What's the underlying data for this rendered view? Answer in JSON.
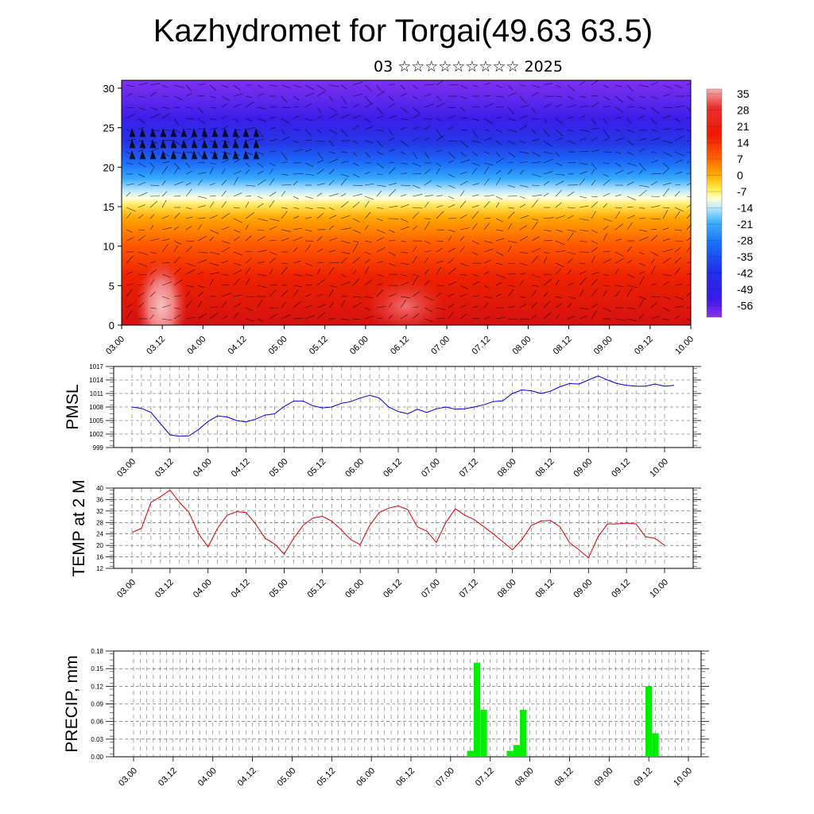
{
  "title": "Kazhydromet for Torgai(49.63 63.5)",
  "subtitle": "03 ☆☆☆☆☆☆☆☆☆ 2025",
  "time_labels": [
    "03.00",
    "03.12",
    "04.00",
    "04.12",
    "05.00",
    "05.12",
    "06.00",
    "06.12",
    "07.00",
    "07.12",
    "08.00",
    "08.12",
    "09.00",
    "09.12",
    "10.00"
  ],
  "chart_data": [
    {
      "type": "heatmap",
      "description_axis": "height",
      "y_ticks": [
        0,
        5,
        10,
        15,
        20,
        25,
        30
      ],
      "ylim": [
        0,
        31
      ],
      "colorbar": {
        "labels": [
          "35",
          "28",
          "21",
          "14",
          "7",
          "0",
          "-7",
          "-14",
          "-21",
          "-28",
          "-35",
          "-42",
          "-49",
          "-56"
        ],
        "range": [
          -60,
          38
        ]
      },
      "grid": false
    },
    {
      "type": "line",
      "ylabel": "PMSL",
      "y_ticks": [
        999,
        1002,
        1005,
        1008,
        1011,
        1014,
        1017
      ],
      "ylim": [
        999,
        1017
      ],
      "color": "#0000dd",
      "values": [
        1008.0,
        1007.7,
        1006.8,
        1004.3,
        1001.8,
        1001.5,
        1001.6,
        1003.0,
        1004.8,
        1006.0,
        1005.8,
        1005.0,
        1004.7,
        1005.3,
        1006.2,
        1006.5,
        1008.1,
        1009.3,
        1009.3,
        1008.3,
        1007.8,
        1008.0,
        1008.8,
        1009.2,
        1010.0,
        1010.6,
        1010.0,
        1008.0,
        1007.0,
        1006.5,
        1007.5,
        1006.8,
        1007.6,
        1008.0,
        1007.5,
        1007.6,
        1008.0,
        1008.5,
        1009.2,
        1009.4,
        1011.0,
        1011.8,
        1011.6,
        1011.0,
        1011.5,
        1012.5,
        1013.2,
        1013.1,
        1014.0,
        1014.9,
        1014.0,
        1013.2,
        1012.8,
        1012.6,
        1012.6,
        1013.1,
        1012.6,
        1012.8
      ]
    },
    {
      "type": "line",
      "ylabel": "TEMP at 2 M",
      "y_ticks": [
        12,
        16,
        20,
        24,
        28,
        32,
        36,
        40
      ],
      "ylim": [
        12,
        40
      ],
      "color": "#dd0000",
      "values": [
        24.5,
        26.0,
        35.0,
        37.0,
        39.3,
        35.0,
        31.5,
        24.0,
        19.5,
        26.0,
        30.5,
        31.8,
        31.5,
        27.5,
        22.5,
        20.5,
        17.0,
        22.5,
        27.0,
        29.5,
        30.2,
        28.5,
        25.5,
        22.0,
        20.3,
        27.0,
        31.5,
        33.0,
        33.8,
        32.5,
        26.5,
        25.0,
        21.0,
        28.0,
        32.8,
        30.5,
        29.0,
        26.5,
        24.0,
        21.3,
        18.5,
        22.0,
        27.0,
        28.5,
        28.7,
        26.5,
        21.0,
        18.5,
        15.7,
        23.0,
        27.5,
        27.5,
        27.8,
        27.5,
        23.0,
        22.5,
        20.0
      ]
    },
    {
      "type": "bar",
      "ylabel": "PRECIP, mm",
      "y_ticks": [
        "0.00",
        "0.03",
        "0.06",
        "0.09",
        "0.12",
        "0.15",
        "0.18"
      ],
      "ylim": [
        0,
        0.18
      ],
      "color": "#00ee00",
      "bars": [
        {
          "x": 51,
          "value": 0.01
        },
        {
          "x": 52,
          "value": 0.16
        },
        {
          "x": 53,
          "value": 0.08
        },
        {
          "x": 57,
          "value": 0.01
        },
        {
          "x": 58,
          "value": 0.02
        },
        {
          "x": 59,
          "value": 0.08
        },
        {
          "x": 78,
          "value": 0.12
        },
        {
          "x": 79,
          "value": 0.04
        }
      ]
    }
  ]
}
